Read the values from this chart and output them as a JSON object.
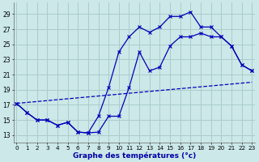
{
  "title": "Graphe des températures (°c)",
  "background_color": "#cce8e8",
  "grid_color": "#aacccc",
  "line_color": "#0000bb",
  "x_labels": [
    "0",
    "1",
    "2",
    "3",
    "4",
    "5",
    "6",
    "7",
    "8",
    "9",
    "10",
    "11",
    "12",
    "13",
    "14",
    "15",
    "16",
    "17",
    "18",
    "19",
    "20",
    "21",
    "22",
    "23"
  ],
  "y_ticks": [
    13,
    15,
    17,
    19,
    21,
    23,
    25,
    27,
    29
  ],
  "ylim": [
    12.0,
    30.5
  ],
  "xlim": [
    -0.3,
    23.3
  ],
  "line1_x": [
    0,
    1,
    2,
    3,
    4,
    5,
    6,
    7,
    8,
    9,
    10,
    11,
    12,
    13,
    14,
    15,
    16,
    17,
    18,
    19,
    20,
    21,
    22,
    23
  ],
  "line1_y": [
    17.2,
    16.0,
    15.0,
    15.0,
    14.3,
    14.7,
    13.4,
    13.3,
    15.5,
    19.3,
    24.0,
    26.0,
    27.3,
    26.6,
    27.3,
    28.7,
    28.7,
    29.3,
    27.3,
    27.3,
    26.0,
    24.8,
    22.3,
    21.5
  ],
  "line2_x": [
    0,
    1,
    2,
    3,
    4,
    5,
    6,
    7,
    8,
    9,
    10,
    11,
    12,
    13,
    14,
    15,
    16,
    17,
    18,
    19,
    20,
    21,
    22,
    23
  ],
  "line2_y": [
    17.2,
    16.0,
    15.0,
    15.0,
    14.3,
    14.7,
    13.4,
    13.3,
    13.4,
    15.5,
    15.5,
    19.3,
    24.0,
    21.5,
    22.0,
    24.8,
    26.0,
    26.0,
    26.5,
    26.0,
    26.0,
    24.8,
    22.3,
    21.5
  ],
  "line3_x": [
    0,
    23
  ],
  "line3_y": [
    17.2,
    20.0
  ]
}
